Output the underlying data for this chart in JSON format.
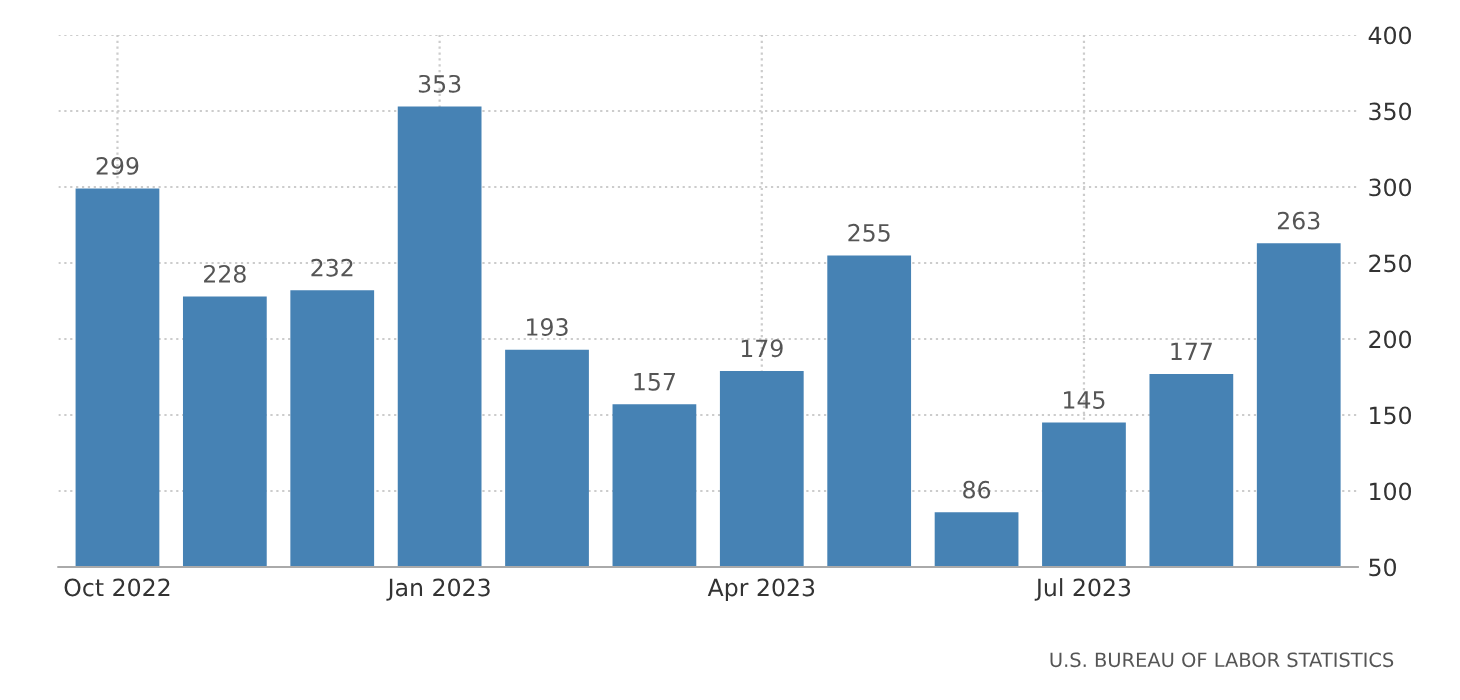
{
  "chart_data": {
    "type": "bar",
    "categories": [
      "Oct 2022",
      null,
      null,
      "Jan 2023",
      null,
      null,
      "Apr 2023",
      null,
      null,
      "Jul 2023",
      null,
      null
    ],
    "values": [
      299,
      228,
      232,
      353,
      193,
      157,
      179,
      255,
      86,
      145,
      177,
      263
    ],
    "color": "#4682b4",
    "ylim": [
      50,
      400
    ],
    "yticks": [
      50,
      100,
      150,
      200,
      250,
      300,
      350,
      400
    ],
    "grid": true,
    "data_labels": true,
    "annotations": [
      "U.S. BUREAU OF LABOR STATISTICS"
    ]
  }
}
